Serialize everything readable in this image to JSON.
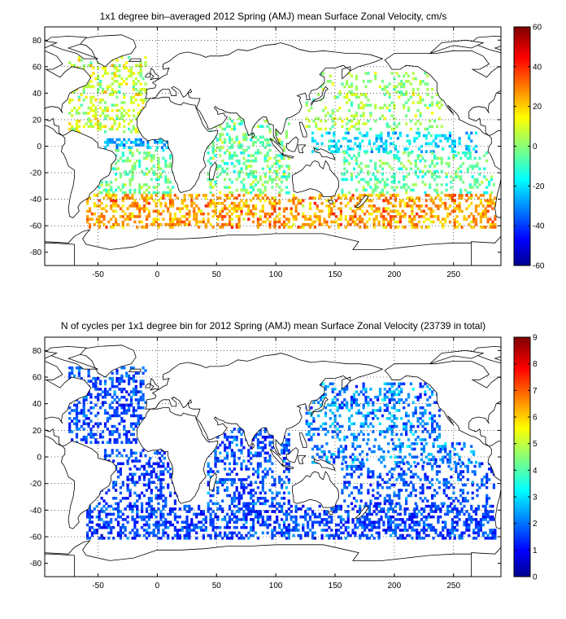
{
  "figure": {
    "background": "#ffffff"
  },
  "chart_data": [
    {
      "type": "heatmap",
      "title": "1x1 degree bin–averaged 2012 Spring (AMJ) mean Surface Zonal Velocity, cm/s",
      "xlabel": "",
      "ylabel": "",
      "xlim": [
        -95,
        290
      ],
      "ylim": [
        -90,
        90
      ],
      "xticks": [
        -50,
        0,
        50,
        100,
        150,
        200,
        250
      ],
      "yticks": [
        -80,
        -60,
        -40,
        -20,
        0,
        20,
        40,
        60,
        80
      ],
      "grid": "dotted",
      "colorbar": {
        "range": [
          -60,
          60
        ],
        "ticks": [
          -60,
          -40,
          -20,
          0,
          20,
          40,
          60
        ],
        "colormap": "jet"
      },
      "value_regions": [
        {
          "name": "North Atlantic",
          "lon": [
            -75,
            -10
          ],
          "lat": [
            10,
            68
          ],
          "mean": 8,
          "spread": 14,
          "density": 0.32
        },
        {
          "name": "South Atlantic",
          "lon": [
            -50,
            18
          ],
          "lat": [
            -36,
            -2
          ],
          "mean": -4,
          "spread": 12,
          "density": 0.3
        },
        {
          "name": "Equatorial Atlantic",
          "lon": [
            -45,
            10
          ],
          "lat": [
            -2,
            5
          ],
          "mean": -25,
          "spread": 12,
          "density": 0.35
        },
        {
          "name": "Indian Ocean",
          "lon": [
            42,
            112
          ],
          "lat": [
            -36,
            22
          ],
          "mean": -2,
          "spread": 14,
          "density": 0.3
        },
        {
          "name": "North Pacific",
          "lon": [
            125,
            240
          ],
          "lat": [
            12,
            55
          ],
          "mean": 4,
          "spread": 12,
          "density": 0.22
        },
        {
          "name": "Equatorial Pacific",
          "lon": [
            130,
            270
          ],
          "lat": [
            -5,
            10
          ],
          "mean": -20,
          "spread": 12,
          "density": 0.3
        },
        {
          "name": "South Pacific",
          "lon": [
            155,
            285
          ],
          "lat": [
            -36,
            -5
          ],
          "mean": -4,
          "spread": 12,
          "density": 0.24
        },
        {
          "name": "Southern Ocean",
          "lon": [
            -60,
            285
          ],
          "lat": [
            -62,
            -36
          ],
          "mean": 26,
          "spread": 14,
          "density": 0.4
        }
      ]
    },
    {
      "type": "heatmap",
      "title": "N of cycles per 1x1 degree bin for 2012 Spring (AMJ) mean Surface Zonal Velocity (23739 in total)",
      "xlabel": "",
      "ylabel": "",
      "total_cycles": 23739,
      "xlim": [
        -95,
        290
      ],
      "ylim": [
        -90,
        90
      ],
      "xticks": [
        -50,
        0,
        50,
        100,
        150,
        200,
        250
      ],
      "yticks": [
        -80,
        -60,
        -40,
        -20,
        0,
        20,
        40,
        60,
        80
      ],
      "grid": "dotted",
      "colorbar": {
        "range": [
          0,
          9
        ],
        "ticks": [
          0,
          1,
          2,
          3,
          4,
          5,
          6,
          7,
          8,
          9
        ],
        "colormap": "jet"
      },
      "value_regions": [
        {
          "name": "North Atlantic",
          "lon": [
            -75,
            -10
          ],
          "lat": [
            10,
            68
          ],
          "mean": 1.8,
          "spread": 0.8,
          "density": 0.4
        },
        {
          "name": "South Atlantic",
          "lon": [
            -50,
            18
          ],
          "lat": [
            -36,
            -2
          ],
          "mean": 1.6,
          "spread": 0.8,
          "density": 0.36
        },
        {
          "name": "Equatorial Atlantic",
          "lon": [
            -45,
            10
          ],
          "lat": [
            -2,
            5
          ],
          "mean": 1.8,
          "spread": 0.8,
          "density": 0.35
        },
        {
          "name": "Indian Ocean",
          "lon": [
            42,
            112
          ],
          "lat": [
            -36,
            22
          ],
          "mean": 1.8,
          "spread": 0.9,
          "density": 0.38
        },
        {
          "name": "North Pacific",
          "lon": [
            125,
            240
          ],
          "lat": [
            12,
            55
          ],
          "mean": 2.3,
          "spread": 1.1,
          "density": 0.3
        },
        {
          "name": "Equatorial Pacific",
          "lon": [
            130,
            270
          ],
          "lat": [
            -5,
            10
          ],
          "mean": 2.2,
          "spread": 1.0,
          "density": 0.32
        },
        {
          "name": "South Pacific",
          "lon": [
            155,
            285
          ],
          "lat": [
            -36,
            -5
          ],
          "mean": 1.8,
          "spread": 0.8,
          "density": 0.28
        },
        {
          "name": "Southern Ocean",
          "lon": [
            -60,
            285
          ],
          "lat": [
            -62,
            -36
          ],
          "mean": 1.7,
          "spread": 0.8,
          "density": 0.45
        }
      ]
    }
  ]
}
